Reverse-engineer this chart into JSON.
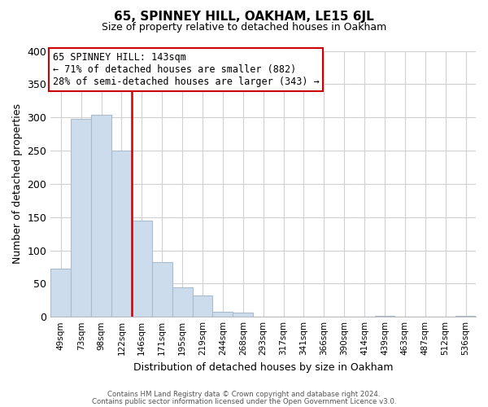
{
  "title": "65, SPINNEY HILL, OAKHAM, LE15 6JL",
  "subtitle": "Size of property relative to detached houses in Oakham",
  "xlabel": "Distribution of detached houses by size in Oakham",
  "ylabel": "Number of detached properties",
  "bar_labels": [
    "49sqm",
    "73sqm",
    "98sqm",
    "122sqm",
    "146sqm",
    "171sqm",
    "195sqm",
    "219sqm",
    "244sqm",
    "268sqm",
    "293sqm",
    "317sqm",
    "341sqm",
    "366sqm",
    "390sqm",
    "414sqm",
    "439sqm",
    "463sqm",
    "487sqm",
    "512sqm",
    "536sqm"
  ],
  "bar_values": [
    73,
    298,
    304,
    250,
    145,
    82,
    44,
    32,
    8,
    6,
    0,
    0,
    0,
    0,
    0,
    0,
    2,
    0,
    0,
    0,
    2
  ],
  "bar_color": "#ccdcec",
  "bar_edge_color": "#aabccc",
  "vline_color": "#cc0000",
  "annotation_title": "65 SPINNEY HILL: 143sqm",
  "annotation_line1": "← 71% of detached houses are smaller (882)",
  "annotation_line2": "28% of semi-detached houses are larger (343) →",
  "annotation_box_color": "white",
  "annotation_box_edge": "#cc0000",
  "ylim": [
    0,
    400
  ],
  "yticks": [
    0,
    50,
    100,
    150,
    200,
    250,
    300,
    350,
    400
  ],
  "footnote1": "Contains HM Land Registry data © Crown copyright and database right 2024.",
  "footnote2": "Contains public sector information licensed under the Open Government Licence v3.0.",
  "background_color": "white",
  "grid_color": "#d0d0d0"
}
